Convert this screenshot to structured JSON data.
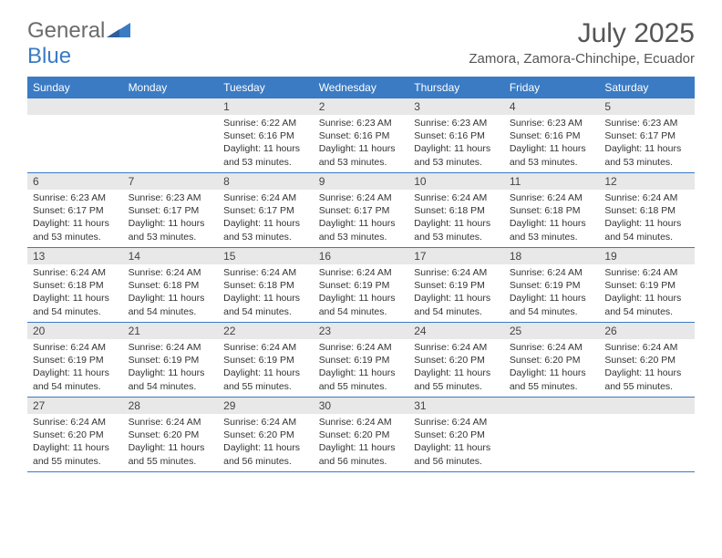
{
  "brand": {
    "word1": "General",
    "word2": "Blue"
  },
  "title": "July 2025",
  "location": "Zamora, Zamora-Chinchipe, Ecuador",
  "colors": {
    "header_bg": "#3a7bc4",
    "header_text": "#ffffff",
    "daynum_bg": "#e8e8e8",
    "border": "#3a7bc4",
    "body_text": "#333333",
    "title_text": "#555555",
    "logo_gray": "#6b6b6b",
    "logo_blue": "#3a7bc4",
    "page_bg": "#ffffff"
  },
  "typography": {
    "title_fontsize": 30,
    "location_fontsize": 15,
    "header_fontsize": 12,
    "daynum_fontsize": 12,
    "body_fontsize": 10.5,
    "logo_fontsize": 24
  },
  "layout": {
    "columns": 7,
    "rows": 5,
    "aspect": "792x612"
  },
  "day_headers": [
    "Sunday",
    "Monday",
    "Tuesday",
    "Wednesday",
    "Thursday",
    "Friday",
    "Saturday"
  ],
  "weeks": [
    [
      null,
      null,
      {
        "n": "1",
        "sunrise": "Sunrise: 6:22 AM",
        "sunset": "Sunset: 6:16 PM",
        "dl1": "Daylight: 11 hours",
        "dl2": "and 53 minutes."
      },
      {
        "n": "2",
        "sunrise": "Sunrise: 6:23 AM",
        "sunset": "Sunset: 6:16 PM",
        "dl1": "Daylight: 11 hours",
        "dl2": "and 53 minutes."
      },
      {
        "n": "3",
        "sunrise": "Sunrise: 6:23 AM",
        "sunset": "Sunset: 6:16 PM",
        "dl1": "Daylight: 11 hours",
        "dl2": "and 53 minutes."
      },
      {
        "n": "4",
        "sunrise": "Sunrise: 6:23 AM",
        "sunset": "Sunset: 6:16 PM",
        "dl1": "Daylight: 11 hours",
        "dl2": "and 53 minutes."
      },
      {
        "n": "5",
        "sunrise": "Sunrise: 6:23 AM",
        "sunset": "Sunset: 6:17 PM",
        "dl1": "Daylight: 11 hours",
        "dl2": "and 53 minutes."
      }
    ],
    [
      {
        "n": "6",
        "sunrise": "Sunrise: 6:23 AM",
        "sunset": "Sunset: 6:17 PM",
        "dl1": "Daylight: 11 hours",
        "dl2": "and 53 minutes."
      },
      {
        "n": "7",
        "sunrise": "Sunrise: 6:23 AM",
        "sunset": "Sunset: 6:17 PM",
        "dl1": "Daylight: 11 hours",
        "dl2": "and 53 minutes."
      },
      {
        "n": "8",
        "sunrise": "Sunrise: 6:24 AM",
        "sunset": "Sunset: 6:17 PM",
        "dl1": "Daylight: 11 hours",
        "dl2": "and 53 minutes."
      },
      {
        "n": "9",
        "sunrise": "Sunrise: 6:24 AM",
        "sunset": "Sunset: 6:17 PM",
        "dl1": "Daylight: 11 hours",
        "dl2": "and 53 minutes."
      },
      {
        "n": "10",
        "sunrise": "Sunrise: 6:24 AM",
        "sunset": "Sunset: 6:18 PM",
        "dl1": "Daylight: 11 hours",
        "dl2": "and 53 minutes."
      },
      {
        "n": "11",
        "sunrise": "Sunrise: 6:24 AM",
        "sunset": "Sunset: 6:18 PM",
        "dl1": "Daylight: 11 hours",
        "dl2": "and 53 minutes."
      },
      {
        "n": "12",
        "sunrise": "Sunrise: 6:24 AM",
        "sunset": "Sunset: 6:18 PM",
        "dl1": "Daylight: 11 hours",
        "dl2": "and 54 minutes."
      }
    ],
    [
      {
        "n": "13",
        "sunrise": "Sunrise: 6:24 AM",
        "sunset": "Sunset: 6:18 PM",
        "dl1": "Daylight: 11 hours",
        "dl2": "and 54 minutes."
      },
      {
        "n": "14",
        "sunrise": "Sunrise: 6:24 AM",
        "sunset": "Sunset: 6:18 PM",
        "dl1": "Daylight: 11 hours",
        "dl2": "and 54 minutes."
      },
      {
        "n": "15",
        "sunrise": "Sunrise: 6:24 AM",
        "sunset": "Sunset: 6:18 PM",
        "dl1": "Daylight: 11 hours",
        "dl2": "and 54 minutes."
      },
      {
        "n": "16",
        "sunrise": "Sunrise: 6:24 AM",
        "sunset": "Sunset: 6:19 PM",
        "dl1": "Daylight: 11 hours",
        "dl2": "and 54 minutes."
      },
      {
        "n": "17",
        "sunrise": "Sunrise: 6:24 AM",
        "sunset": "Sunset: 6:19 PM",
        "dl1": "Daylight: 11 hours",
        "dl2": "and 54 minutes."
      },
      {
        "n": "18",
        "sunrise": "Sunrise: 6:24 AM",
        "sunset": "Sunset: 6:19 PM",
        "dl1": "Daylight: 11 hours",
        "dl2": "and 54 minutes."
      },
      {
        "n": "19",
        "sunrise": "Sunrise: 6:24 AM",
        "sunset": "Sunset: 6:19 PM",
        "dl1": "Daylight: 11 hours",
        "dl2": "and 54 minutes."
      }
    ],
    [
      {
        "n": "20",
        "sunrise": "Sunrise: 6:24 AM",
        "sunset": "Sunset: 6:19 PM",
        "dl1": "Daylight: 11 hours",
        "dl2": "and 54 minutes."
      },
      {
        "n": "21",
        "sunrise": "Sunrise: 6:24 AM",
        "sunset": "Sunset: 6:19 PM",
        "dl1": "Daylight: 11 hours",
        "dl2": "and 54 minutes."
      },
      {
        "n": "22",
        "sunrise": "Sunrise: 6:24 AM",
        "sunset": "Sunset: 6:19 PM",
        "dl1": "Daylight: 11 hours",
        "dl2": "and 55 minutes."
      },
      {
        "n": "23",
        "sunrise": "Sunrise: 6:24 AM",
        "sunset": "Sunset: 6:19 PM",
        "dl1": "Daylight: 11 hours",
        "dl2": "and 55 minutes."
      },
      {
        "n": "24",
        "sunrise": "Sunrise: 6:24 AM",
        "sunset": "Sunset: 6:20 PM",
        "dl1": "Daylight: 11 hours",
        "dl2": "and 55 minutes."
      },
      {
        "n": "25",
        "sunrise": "Sunrise: 6:24 AM",
        "sunset": "Sunset: 6:20 PM",
        "dl1": "Daylight: 11 hours",
        "dl2": "and 55 minutes."
      },
      {
        "n": "26",
        "sunrise": "Sunrise: 6:24 AM",
        "sunset": "Sunset: 6:20 PM",
        "dl1": "Daylight: 11 hours",
        "dl2": "and 55 minutes."
      }
    ],
    [
      {
        "n": "27",
        "sunrise": "Sunrise: 6:24 AM",
        "sunset": "Sunset: 6:20 PM",
        "dl1": "Daylight: 11 hours",
        "dl2": "and 55 minutes."
      },
      {
        "n": "28",
        "sunrise": "Sunrise: 6:24 AM",
        "sunset": "Sunset: 6:20 PM",
        "dl1": "Daylight: 11 hours",
        "dl2": "and 55 minutes."
      },
      {
        "n": "29",
        "sunrise": "Sunrise: 6:24 AM",
        "sunset": "Sunset: 6:20 PM",
        "dl1": "Daylight: 11 hours",
        "dl2": "and 56 minutes."
      },
      {
        "n": "30",
        "sunrise": "Sunrise: 6:24 AM",
        "sunset": "Sunset: 6:20 PM",
        "dl1": "Daylight: 11 hours",
        "dl2": "and 56 minutes."
      },
      {
        "n": "31",
        "sunrise": "Sunrise: 6:24 AM",
        "sunset": "Sunset: 6:20 PM",
        "dl1": "Daylight: 11 hours",
        "dl2": "and 56 minutes."
      },
      null,
      null
    ]
  ]
}
